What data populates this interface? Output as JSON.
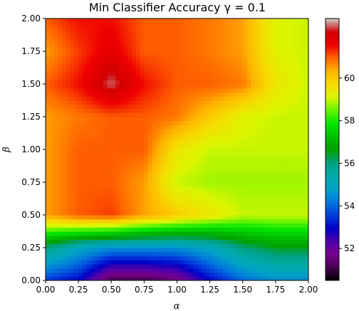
{
  "chart_data": {
    "type": "heatmap",
    "title": "Min Classifier Accuracy γ = 0.1",
    "xlabel": "α",
    "ylabel": "β",
    "x": [
      0.0,
      0.25,
      0.5,
      0.75,
      1.0,
      1.25,
      1.5,
      1.75,
      2.0
    ],
    "y": [
      0.0,
      0.25,
      0.5,
      0.75,
      1.0,
      1.25,
      1.5,
      1.75,
      2.0
    ],
    "xlim": [
      0.0,
      2.0
    ],
    "ylim": [
      0.0,
      2.0
    ],
    "xticklabels": [
      "0.00",
      "0.25",
      "0.50",
      "0.75",
      "1.00",
      "1.25",
      "1.50",
      "1.75",
      "2.00"
    ],
    "yticklabels": [
      "0.00",
      "0.25",
      "0.50",
      "0.75",
      "1.00",
      "1.25",
      "1.50",
      "1.75",
      "2.00"
    ],
    "z_rows_from_bottom": [
      [
        53.5,
        53.0,
        51.0,
        51.0,
        51.5,
        53.0,
        54.0,
        54.5,
        54.5
      ],
      [
        56.0,
        55.0,
        54.5,
        54.5,
        54.5,
        55.0,
        56.0,
        56.5,
        56.5
      ],
      [
        60.5,
        61.0,
        61.2,
        60.5,
        60.0,
        59.5,
        59.0,
        59.0,
        59.0
      ],
      [
        60.5,
        61.0,
        61.0,
        60.5,
        59.0,
        58.8,
        58.8,
        58.8,
        58.8
      ],
      [
        60.5,
        61.0,
        61.0,
        61.0,
        59.5,
        59.0,
        59.0,
        59.0,
        59.0
      ],
      [
        60.5,
        60.8,
        61.0,
        61.0,
        60.8,
        60.0,
        59.2,
        59.0,
        59.0
      ],
      [
        61.0,
        61.5,
        62.5,
        61.5,
        61.0,
        61.0,
        60.8,
        59.5,
        59.0
      ],
      [
        60.5,
        61.2,
        61.8,
        61.0,
        61.0,
        60.8,
        60.5,
        59.2,
        59.0
      ],
      [
        61.0,
        61.5,
        61.5,
        61.0,
        61.0,
        60.8,
        60.5,
        59.2,
        59.0
      ]
    ],
    "colormap": "nipy_spectral",
    "colorbar": {
      "min": 50.5,
      "max": 62.8,
      "ticks": [
        52,
        54,
        56,
        58,
        60
      ],
      "ticklabels": [
        "52",
        "54",
        "56",
        "58",
        "60"
      ]
    }
  }
}
